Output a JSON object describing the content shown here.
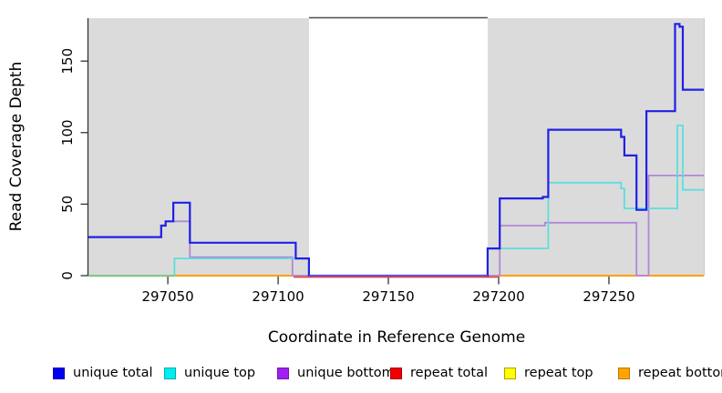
{
  "chart_data": {
    "type": "line",
    "title": "",
    "xlabel": "Coordinate in Reference Genome",
    "ylabel": "Read Coverage Depth",
    "xlim": [
      297014,
      297293
    ],
    "ylim": [
      0,
      180
    ],
    "x_ticks": [
      "297050",
      "297100",
      "297150",
      "297200",
      "297250"
    ],
    "x_tick_values": [
      297050,
      297100,
      297150,
      297200,
      297250
    ],
    "y_ticks": [
      "0",
      "50",
      "100",
      "150"
    ],
    "y_tick_values": [
      0,
      50,
      100,
      150
    ],
    "grid": false,
    "legend_position": "bottom",
    "step_mode": "after",
    "plot_background": "#ffffff",
    "shaded_regions": [
      {
        "x1": 297014,
        "x2": 297114,
        "color": "#DBDBDB"
      },
      {
        "x1": 297195,
        "x2": 297293,
        "color": "#DBDBDB"
      }
    ],
    "series": [
      {
        "name": "repeat total",
        "line_color": "#E03030",
        "legend_color": "#EE0000",
        "legend_border": "#AA0000",
        "points": [
          [
            297014,
            0
          ]
        ],
        "end_x": 297293
      },
      {
        "name": "repeat top",
        "line_color": "#E8E800",
        "legend_color": "#FFFF00",
        "legend_border": "#B0A000",
        "points": [
          [
            297014,
            0
          ]
        ],
        "end_x": 297293
      },
      {
        "name": "repeat bottom",
        "line_color": "#FF9A00",
        "legend_color": "#FFA500",
        "legend_border": "#C07400",
        "points": [
          [
            297014,
            0
          ]
        ],
        "end_x": 297293
      },
      {
        "name": "unique bottom",
        "line_color": "#B287D6",
        "legend_color": "#A020F0",
        "legend_border": "#7714B8",
        "points": [
          [
            297014,
            27
          ],
          [
            297047,
            35
          ],
          [
            297049,
            38
          ],
          [
            297060,
            13
          ],
          [
            297106.5,
            0
          ],
          [
            297200.5,
            35
          ],
          [
            297221,
            37
          ],
          [
            297262.5,
            0
          ],
          [
            297268,
            70
          ]
        ],
        "end_x": 297293
      },
      {
        "name": "unique top",
        "line_color": "#5CDEDE",
        "legend_color": "#00EEEE",
        "legend_border": "#00AAAA",
        "points": [
          [
            297014,
            0
          ],
          [
            297053,
            12
          ],
          [
            297114,
            0
          ],
          [
            297195,
            19
          ],
          [
            297222.5,
            65
          ],
          [
            297255.5,
            61
          ],
          [
            297257,
            47
          ],
          [
            297281,
            105
          ],
          [
            297283.5,
            60
          ]
        ],
        "end_x": 297293
      },
      {
        "name": "unique total",
        "line_color": "#2020E6",
        "legend_color": "#0000EE",
        "legend_border": "#0000BB",
        "points": [
          [
            297014,
            27
          ],
          [
            297047,
            35
          ],
          [
            297049,
            38
          ],
          [
            297052.5,
            51
          ],
          [
            297060,
            23
          ],
          [
            297108,
            12
          ],
          [
            297114,
            0
          ],
          [
            297195,
            19
          ],
          [
            297200.5,
            54
          ],
          [
            297220,
            55
          ],
          [
            297222.5,
            102
          ],
          [
            297255.5,
            97
          ],
          [
            297257,
            84
          ],
          [
            297262.5,
            46
          ],
          [
            297267,
            115
          ],
          [
            297280,
            176
          ],
          [
            297282,
            174
          ],
          [
            297283.5,
            130
          ]
        ],
        "end_x": 297293
      }
    ],
    "legend_order": [
      "unique total",
      "unique top",
      "unique bottom",
      "repeat total",
      "repeat top",
      "repeat bottom"
    ],
    "zero_line_segments": [
      {
        "x1": 297014,
        "x2": 297053,
        "color": "#7FC87F",
        "dy": 0.3,
        "width": 1.8,
        "name": "zero-line-green-left"
      },
      {
        "x1": 297107,
        "x2": 297200,
        "color": "#E04343",
        "dy": 1.6,
        "width": 1.5,
        "name": "zero-line-red-fringe"
      },
      {
        "x1": 297114,
        "x2": 297195,
        "color": "#6A5BE0",
        "dy": 0,
        "width": 1.8,
        "name": "zero-line-indigo-gap"
      }
    ]
  }
}
